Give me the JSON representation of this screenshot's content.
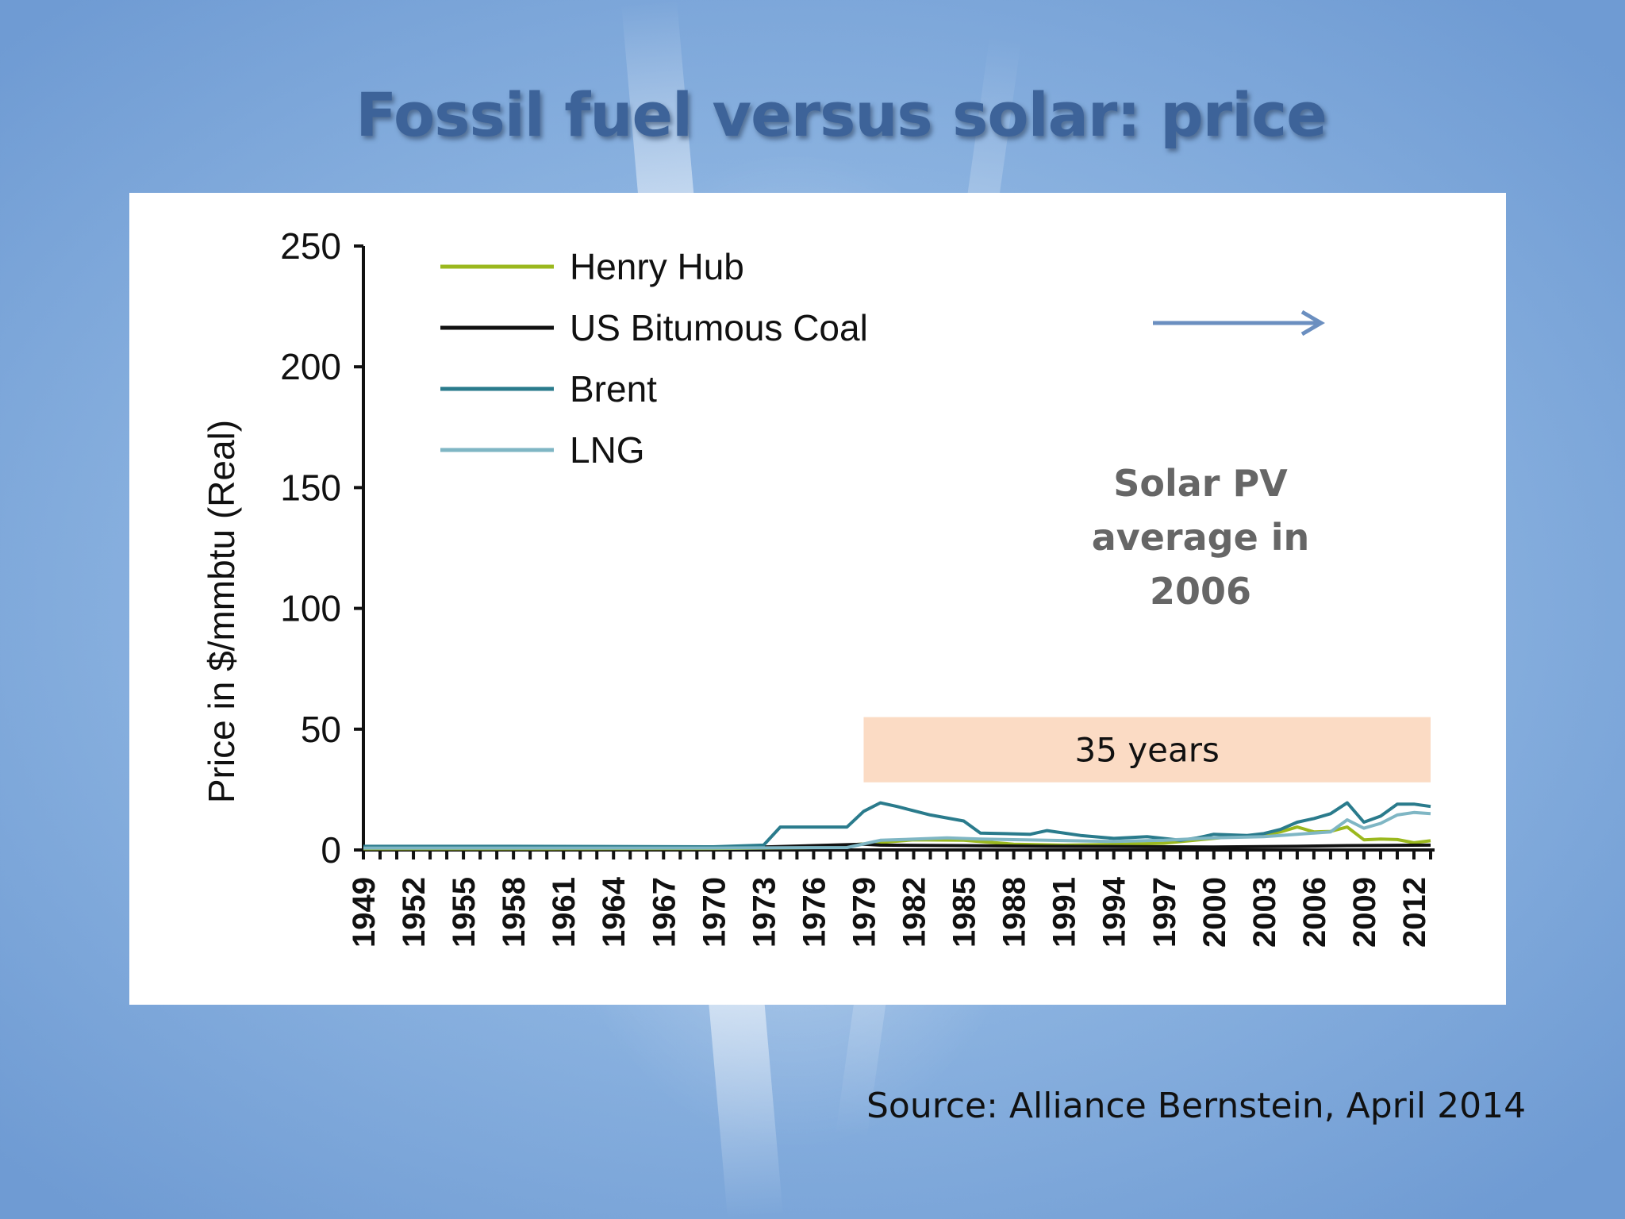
{
  "slide": {
    "title": "Fossil fuel versus solar: price",
    "source": "Source: Alliance Bernstein, April 2014"
  },
  "chart_data": {
    "type": "line",
    "title": "",
    "xlabel": "",
    "ylabel": "Price in $/mmbtu (Real)",
    "ylim": [
      0,
      250
    ],
    "yticks": [
      0,
      50,
      100,
      150,
      200,
      250
    ],
    "xlim": [
      1949,
      2013
    ],
    "xtick_labels": [
      "1949",
      "1952",
      "1955",
      "1958",
      "1961",
      "1964",
      "1967",
      "1970",
      "1973",
      "1976",
      "1979",
      "1982",
      "1985",
      "1988",
      "1991",
      "1994",
      "1997",
      "2000",
      "2003",
      "2006",
      "2009",
      "2012"
    ],
    "legend_position": "top-left",
    "grid": false,
    "series": [
      {
        "name": "Henry Hub",
        "color": "#9bb81e",
        "points": [
          [
            1949,
            0.5
          ],
          [
            1960,
            0.5
          ],
          [
            1970,
            0.6
          ],
          [
            1976,
            1.0
          ],
          [
            1979,
            2.5
          ],
          [
            1982,
            4.2
          ],
          [
            1985,
            4.0
          ],
          [
            1988,
            2.4
          ],
          [
            1991,
            2.0
          ],
          [
            1994,
            2.3
          ],
          [
            1997,
            2.8
          ],
          [
            2000,
            4.8
          ],
          [
            2001,
            5.5
          ],
          [
            2003,
            6.0
          ],
          [
            2004,
            7.5
          ],
          [
            2005,
            9.5
          ],
          [
            2006,
            7.5
          ],
          [
            2007,
            7.7
          ],
          [
            2008,
            9.5
          ],
          [
            2009,
            4.2
          ],
          [
            2010,
            4.5
          ],
          [
            2011,
            4.3
          ],
          [
            2012,
            3.0
          ],
          [
            2013,
            3.8
          ]
        ]
      },
      {
        "name": "US Bitumous Coal",
        "color": "#111111",
        "points": [
          [
            1949,
            1.0
          ],
          [
            1960,
            1.0
          ],
          [
            1970,
            1.0
          ],
          [
            1973,
            1.2
          ],
          [
            1976,
            1.8
          ],
          [
            1979,
            2.4
          ],
          [
            1980,
            2.0
          ],
          [
            1985,
            1.8
          ],
          [
            1990,
            1.5
          ],
          [
            1995,
            1.4
          ],
          [
            2000,
            1.2
          ],
          [
            2005,
            1.5
          ],
          [
            2008,
            1.8
          ],
          [
            2010,
            1.9
          ],
          [
            2013,
            2.0
          ]
        ]
      },
      {
        "name": "Brent",
        "color": "#2a7b8c",
        "points": [
          [
            1949,
            1.5
          ],
          [
            1958,
            1.5
          ],
          [
            1970,
            1.3
          ],
          [
            1973,
            2.0
          ],
          [
            1974,
            9.5
          ],
          [
            1978,
            9.5
          ],
          [
            1979,
            16.0
          ],
          [
            1980,
            19.5
          ],
          [
            1981,
            18.0
          ],
          [
            1983,
            14.5
          ],
          [
            1985,
            12.0
          ],
          [
            1986,
            7.0
          ],
          [
            1989,
            6.5
          ],
          [
            1990,
            8.0
          ],
          [
            1992,
            6.0
          ],
          [
            1994,
            4.8
          ],
          [
            1996,
            5.5
          ],
          [
            1998,
            4.0
          ],
          [
            1999,
            5.0
          ],
          [
            2000,
            6.5
          ],
          [
            2002,
            6.0
          ],
          [
            2003,
            6.8
          ],
          [
            2004,
            8.5
          ],
          [
            2005,
            11.5
          ],
          [
            2006,
            13.0
          ],
          [
            2007,
            15.0
          ],
          [
            2008,
            19.5
          ],
          [
            2009,
            11.5
          ],
          [
            2010,
            14.0
          ],
          [
            2011,
            19.0
          ],
          [
            2012,
            19.0
          ],
          [
            2013,
            18.0
          ]
        ]
      },
      {
        "name": "LNG",
        "color": "#7fb6c4",
        "points": [
          [
            1949,
            0.8
          ],
          [
            1970,
            0.8
          ],
          [
            1978,
            1.0
          ],
          [
            1980,
            4.0
          ],
          [
            1984,
            5.0
          ],
          [
            1986,
            4.5
          ],
          [
            1990,
            4.0
          ],
          [
            1994,
            3.5
          ],
          [
            1997,
            4.0
          ],
          [
            2000,
            5.0
          ],
          [
            2003,
            5.5
          ],
          [
            2004,
            6.0
          ],
          [
            2006,
            7.0
          ],
          [
            2007,
            7.5
          ],
          [
            2008,
            12.5
          ],
          [
            2009,
            9.0
          ],
          [
            2010,
            11.0
          ],
          [
            2011,
            14.5
          ],
          [
            2012,
            15.5
          ],
          [
            2013,
            15.0
          ]
        ]
      }
    ],
    "annotations": {
      "solar_pv_text": "Solar PV average in 2006",
      "solar_pv_value": 220,
      "band_label": "35 years",
      "band_years": [
        1979,
        2013
      ],
      "band_yrange": [
        28,
        55
      ],
      "band_color": "#fbdbc4",
      "arrow_color": "#6b8fc0"
    }
  }
}
